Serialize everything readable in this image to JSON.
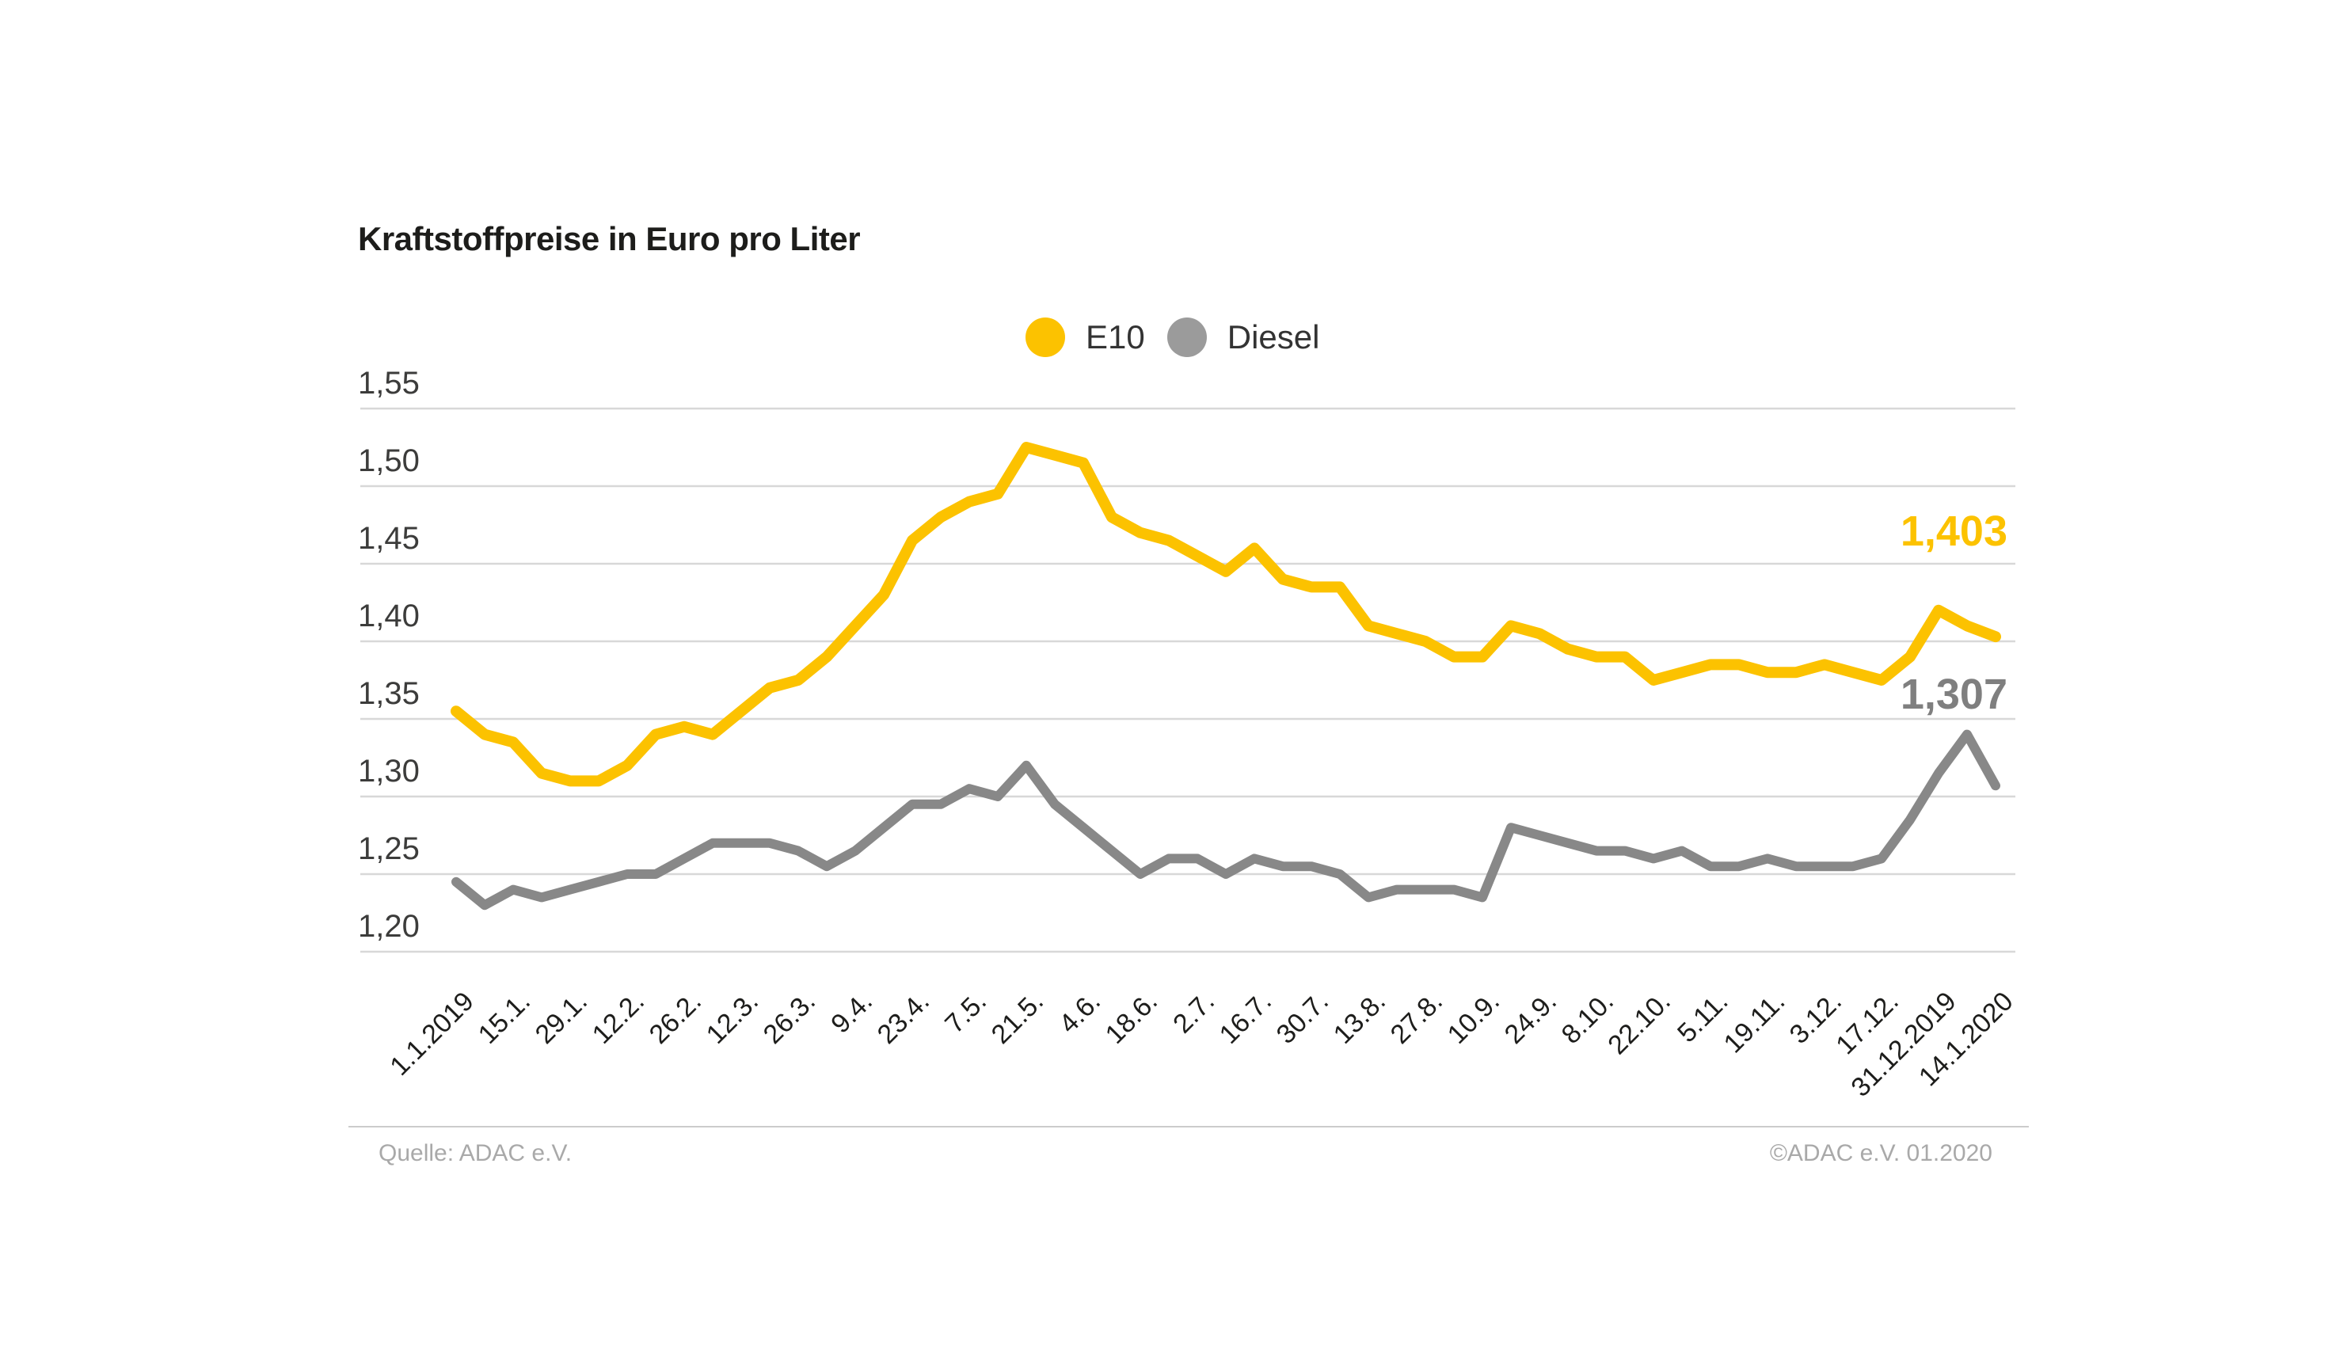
{
  "title": "Kraftstoffpreise in Euro pro Liter",
  "legend": [
    {
      "label": "E10",
      "color": "#fcc200"
    },
    {
      "label": "Diesel",
      "color": "#9b9b9b"
    }
  ],
  "annotations": {
    "e10_end_value": "1,403",
    "diesel_end_value": "1,307"
  },
  "footer": {
    "source": "Quelle: ADAC e.V.",
    "copyright": "©ADAC e.V.  01.2020"
  },
  "colors": {
    "e10_line": "#fcc200",
    "diesel_line": "#888888",
    "e10_annotation": "#fcc200",
    "diesel_annotation": "#7f7f7f",
    "gridline": "#d8d8d8",
    "title_text": "#1d1d1b",
    "axis_text": "#3c3c3b",
    "footer_text": "#a9a9a9"
  },
  "chart_data": {
    "type": "line",
    "title": "Kraftstoffpreise in Euro pro Liter",
    "ylabel": "Euro pro Liter",
    "xlabel": "",
    "ylim": [
      1.2,
      1.55
    ],
    "y_tick_step": 0.05,
    "y_tick_labels": [
      "1,55",
      "1,50",
      "1,45",
      "1,40",
      "1,35",
      "1,30",
      "1,25",
      "1,20"
    ],
    "y_tick_values": [
      1.55,
      1.5,
      1.45,
      1.4,
      1.35,
      1.3,
      1.25,
      1.2
    ],
    "grid": "horizontal",
    "legend_position": "top-center",
    "x_interval": "weekly",
    "x_tick_labels": [
      "1.1.2019",
      "15.1.",
      "29.1.",
      "12.2.",
      "26.2.",
      "12.3.",
      "26.3.",
      "9.4.",
      "23.4.",
      "7.5.",
      "21.5.",
      "4.6.",
      "18.6.",
      "2.7.",
      "16.7.",
      "30.7.",
      "13.8.",
      "27.8.",
      "10.9.",
      "24.9.",
      "8.10.",
      "22.10.",
      "5.11.",
      "19.11.",
      "3.12.",
      "17.12.",
      "31.12.2019",
      "14.1.2020"
    ],
    "x_tick_every_n_points": 2,
    "series": [
      {
        "name": "E10",
        "color": "#fcc200",
        "values": [
          1.355,
          1.34,
          1.335,
          1.315,
          1.31,
          1.31,
          1.32,
          1.34,
          1.345,
          1.34,
          1.355,
          1.37,
          1.375,
          1.39,
          1.41,
          1.43,
          1.465,
          1.48,
          1.49,
          1.495,
          1.525,
          1.52,
          1.515,
          1.48,
          1.47,
          1.465,
          1.455,
          1.445,
          1.46,
          1.44,
          1.435,
          1.435,
          1.41,
          1.405,
          1.4,
          1.39,
          1.39,
          1.41,
          1.405,
          1.395,
          1.39,
          1.39,
          1.375,
          1.38,
          1.385,
          1.385,
          1.38,
          1.38,
          1.385,
          1.38,
          1.375,
          1.39,
          1.42,
          1.41,
          1.403
        ],
        "end_label": "1,403"
      },
      {
        "name": "Diesel",
        "color": "#888888",
        "values": [
          1.245,
          1.23,
          1.24,
          1.235,
          1.24,
          1.245,
          1.25,
          1.25,
          1.26,
          1.27,
          1.27,
          1.27,
          1.265,
          1.255,
          1.265,
          1.28,
          1.295,
          1.295,
          1.305,
          1.3,
          1.32,
          1.295,
          1.28,
          1.265,
          1.25,
          1.26,
          1.26,
          1.25,
          1.26,
          1.255,
          1.255,
          1.25,
          1.235,
          1.24,
          1.24,
          1.24,
          1.235,
          1.28,
          1.275,
          1.27,
          1.265,
          1.265,
          1.26,
          1.265,
          1.255,
          1.255,
          1.26,
          1.255,
          1.255,
          1.255,
          1.26,
          1.285,
          1.315,
          1.34,
          1.307
        ],
        "end_label": "1,307"
      }
    ]
  }
}
